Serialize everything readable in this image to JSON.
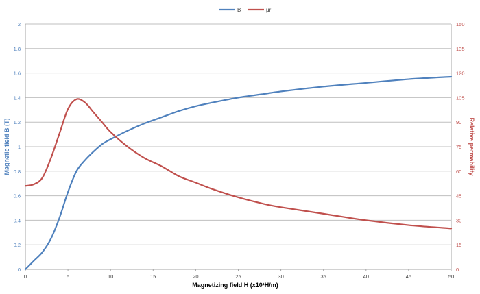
{
  "chart_data": {
    "type": "line",
    "title": "",
    "xlabel": "Magnetizing field H (x10¹H/m)",
    "ylabel": "Magnetic field B (T)",
    "y2label": "Relative permability",
    "xlim": [
      0,
      50
    ],
    "ylim": [
      0,
      2
    ],
    "y2lim": [
      0,
      150
    ],
    "xticks": [
      "0",
      "5",
      "10",
      "15",
      "20",
      "25",
      "30",
      "35",
      "40",
      "45",
      "50"
    ],
    "yticks": [
      "0",
      "0.2",
      "0.4",
      "0.6",
      "0.8",
      "1",
      "1.2",
      "1.4",
      "1.6",
      "1.8",
      "2"
    ],
    "y2ticks": [
      "0",
      "15",
      "30",
      "45",
      "60",
      "75",
      "90",
      "105",
      "120",
      "135",
      "150"
    ],
    "grid": true,
    "legend": "top-center",
    "series": [
      {
        "name": "B",
        "axis": "left",
        "color": "#4f81bd",
        "x": [
          0,
          1,
          2,
          3,
          4,
          5,
          6,
          7,
          8,
          9,
          10,
          12,
          14,
          16,
          18,
          20,
          22,
          25,
          28,
          30,
          35,
          40,
          45,
          50
        ],
        "values": [
          0,
          0.07,
          0.14,
          0.25,
          0.42,
          0.63,
          0.8,
          0.89,
          0.96,
          1.02,
          1.06,
          1.13,
          1.19,
          1.24,
          1.29,
          1.33,
          1.36,
          1.4,
          1.43,
          1.45,
          1.49,
          1.52,
          1.55,
          1.57
        ]
      },
      {
        "name": "μr",
        "axis": "right",
        "color": "#c0504d",
        "x": [
          0,
          1,
          2,
          3,
          4,
          5,
          6,
          7,
          8,
          9,
          10,
          12,
          14,
          16,
          18,
          20,
          22,
          25,
          28,
          30,
          35,
          40,
          45,
          50
        ],
        "values": [
          51,
          52,
          56,
          68,
          83,
          98,
          104,
          102,
          96,
          90,
          84,
          75,
          68,
          63,
          57,
          53,
          49,
          44,
          40,
          38,
          34,
          30,
          27,
          25
        ]
      }
    ]
  }
}
